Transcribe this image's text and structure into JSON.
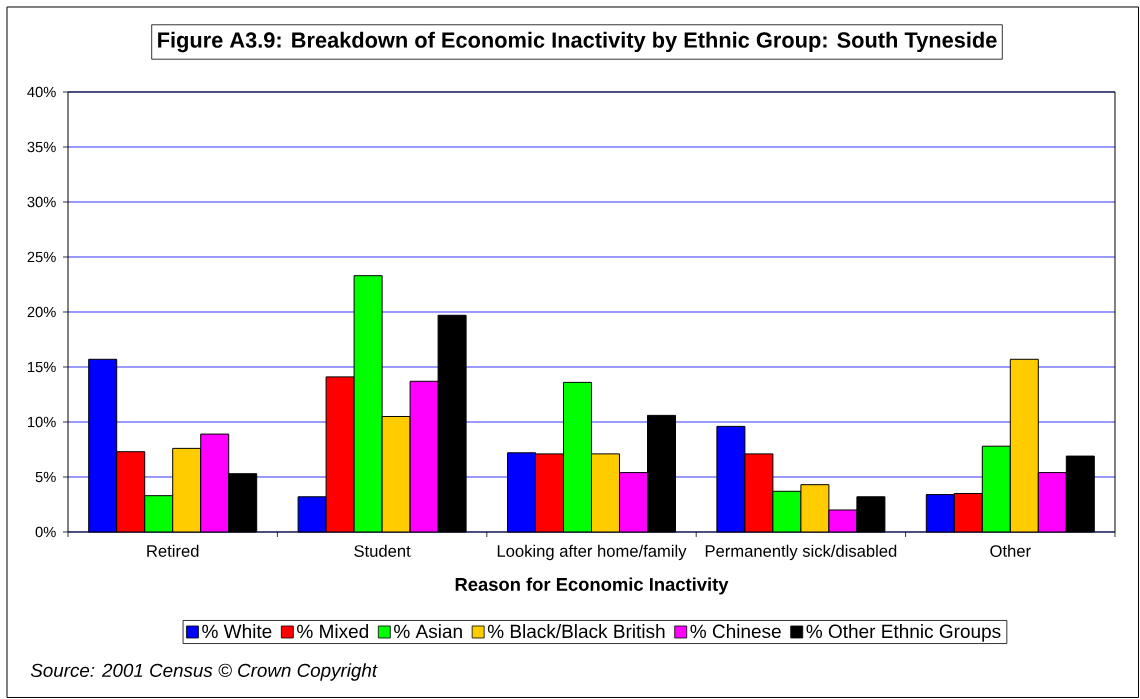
{
  "chart_data": {
    "type": "bar",
    "title": "Figure A3.9: Breakdown of Economic Inactivity by Ethnic Group: South Tyneside",
    "xlabel": "Reason for Economic Inactivity",
    "categories": [
      "Retired",
      "Student",
      "Looking after home/family",
      "Permanently sick/disabled",
      "Other"
    ],
    "series": [
      {
        "name": "% White",
        "color": "#0000ff",
        "values": [
          15.7,
          3.2,
          7.2,
          9.6,
          3.4
        ]
      },
      {
        "name": "% Mixed",
        "color": "#ff0000",
        "values": [
          7.3,
          14.1,
          7.1,
          7.1,
          3.5
        ]
      },
      {
        "name": "% Asian",
        "color": "#00ff00",
        "values": [
          3.3,
          23.3,
          13.6,
          3.7,
          7.8
        ]
      },
      {
        "name": "% Black/Black British",
        "color": "#ffcc00",
        "values": [
          7.6,
          10.5,
          7.1,
          4.3,
          15.7
        ]
      },
      {
        "name": "% Chinese",
        "color": "#ff00ff",
        "values": [
          8.9,
          13.7,
          5.4,
          2.0,
          5.4
        ]
      },
      {
        "name": "% Other Ethnic Groups",
        "color": "#000000",
        "values": [
          5.3,
          19.7,
          10.6,
          3.2,
          6.9
        ]
      }
    ],
    "ylim": [
      0,
      40
    ],
    "yticks": [
      {
        "value": 0,
        "label": "0%"
      },
      {
        "value": 5,
        "label": "5%"
      },
      {
        "value": 10,
        "label": "10%"
      },
      {
        "value": 15,
        "label": "15%"
      },
      {
        "value": 20,
        "label": "20%"
      },
      {
        "value": 25,
        "label": "25%"
      },
      {
        "value": 30,
        "label": "30%"
      },
      {
        "value": 35,
        "label": "35%"
      },
      {
        "value": 40,
        "label": "40%"
      }
    ],
    "grid": "y",
    "legend": "bottom",
    "annotations": [
      "Source: 2001 Census © Crown Copyright"
    ]
  }
}
